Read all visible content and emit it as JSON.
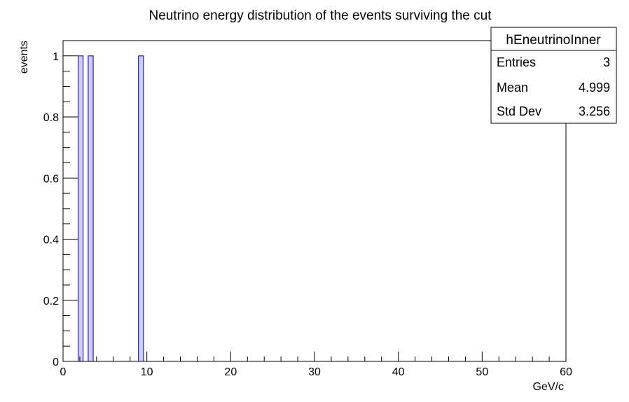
{
  "chart_data": {
    "type": "bar",
    "title": "Neutrino energy distribution of the events surviving the cut",
    "xlabel": "GeV/c",
    "ylabel": "events",
    "xlim": [
      0,
      60
    ],
    "ylim": [
      0,
      1.05
    ],
    "x_ticks": [
      0,
      10,
      20,
      30,
      40,
      50,
      60
    ],
    "y_ticks": [
      0,
      0.2,
      0.4,
      0.6,
      0.8,
      1
    ],
    "bin_width": 0.6,
    "bars": [
      {
        "x_low": 1.8,
        "x_high": 2.4,
        "value": 1
      },
      {
        "x_low": 3.0,
        "x_high": 3.6,
        "value": 1
      },
      {
        "x_low": 9.0,
        "x_high": 9.6,
        "value": 1
      }
    ],
    "grid": false,
    "fill_color": "#ccccff",
    "line_color": "#000099",
    "stats_box": {
      "name": "hEneutrinoInner",
      "rows": [
        {
          "label": "Entries",
          "value": "3"
        },
        {
          "label": "Mean",
          "value": "4.999"
        },
        {
          "label": "Std Dev",
          "value": "3.256"
        }
      ]
    }
  }
}
